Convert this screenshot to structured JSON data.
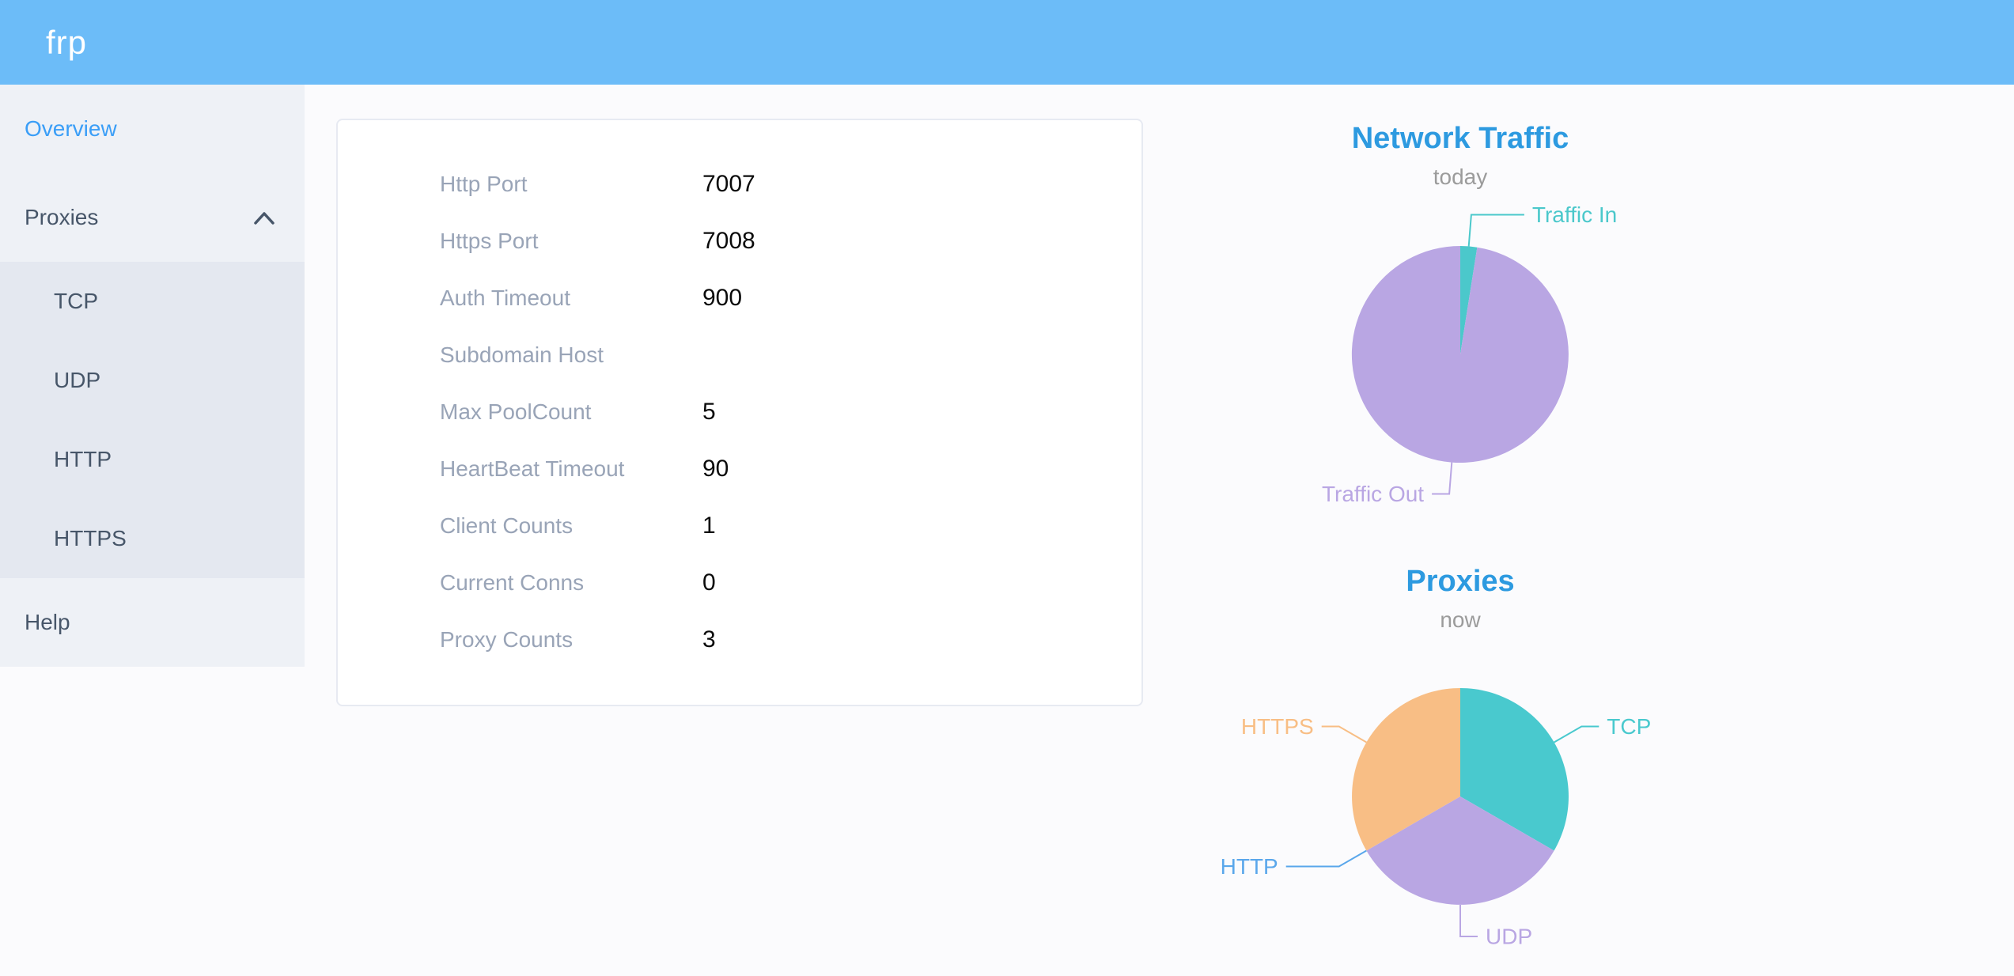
{
  "header": {
    "logo": "frp"
  },
  "sidebar": {
    "items": [
      {
        "label": "Overview",
        "active": true
      },
      {
        "label": "Proxies",
        "expanded": true,
        "children": [
          {
            "label": "TCP"
          },
          {
            "label": "UDP"
          },
          {
            "label": "HTTP"
          },
          {
            "label": "HTTPS"
          }
        ]
      },
      {
        "label": "Help"
      }
    ]
  },
  "overview_card": {
    "rows": [
      {
        "label": "Http Port",
        "value": "7007"
      },
      {
        "label": "Https Port",
        "value": "7008"
      },
      {
        "label": "Auth Timeout",
        "value": "900"
      },
      {
        "label": "Subdomain Host",
        "value": ""
      },
      {
        "label": "Max PoolCount",
        "value": "5"
      },
      {
        "label": "HeartBeat Timeout",
        "value": "90"
      },
      {
        "label": "Client Counts",
        "value": "1"
      },
      {
        "label": "Current Conns",
        "value": "0"
      },
      {
        "label": "Proxy Counts",
        "value": "3"
      }
    ]
  },
  "chart_data": [
    {
      "type": "pie",
      "title": "Network Traffic",
      "subtitle": "today",
      "values_are_percent_estimated_from_angles": true,
      "series": [
        {
          "name": "Traffic In",
          "value": 2.5,
          "color": "#4bc8cb"
        },
        {
          "name": "Traffic Out",
          "value": 97.5,
          "color": "#b9a6e3"
        }
      ],
      "legend_position": "callout-labels",
      "start_angle_deg_from_top": 0
    },
    {
      "type": "pie",
      "title": "Proxies",
      "subtitle": "now",
      "series": [
        {
          "name": "TCP",
          "value": 1,
          "color": "#49c9ce"
        },
        {
          "name": "UDP",
          "value": 1,
          "color": "#b9a6e3"
        },
        {
          "name": "HTTP",
          "value": 0,
          "color": "#5aa7eb"
        },
        {
          "name": "HTTPS",
          "value": 1,
          "color": "#f8be85"
        }
      ],
      "legend_position": "callout-labels",
      "start_angle_deg_from_top": 0
    }
  ],
  "colors": {
    "header_bg": "#6cbcf8",
    "sidebar_bg": "#eef1f6",
    "submenu_bg": "#e4e8f0",
    "menu_text": "#475669",
    "active_menu_text": "#3a9ef7",
    "chart_title_blue": "#2d9ae0",
    "card_label_gray": "#99a4b7"
  }
}
